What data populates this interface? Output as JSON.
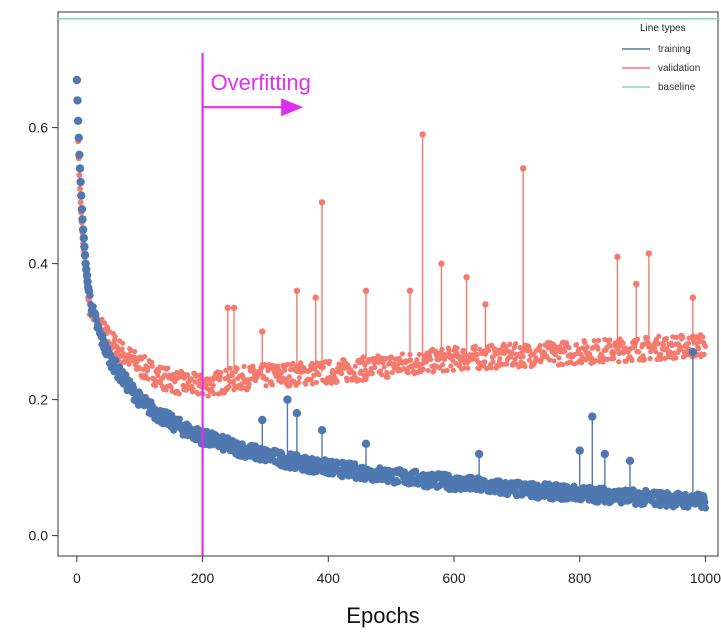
{
  "chart_data": {
    "type": "scatter",
    "title": "",
    "xlabel": "Epochs",
    "ylabel": "",
    "xlim": [
      -30,
      1020
    ],
    "ylim": [
      -0.03,
      0.77
    ],
    "x_ticks": [
      0,
      200,
      400,
      600,
      800,
      1000
    ],
    "y_ticks": [
      0.0,
      0.2,
      0.4,
      0.6
    ],
    "x_tick_labels": [
      "0",
      "200",
      "400",
      "600",
      "800",
      "1000"
    ],
    "y_tick_labels": [
      "0.0",
      "0.2",
      "0.4",
      "0.6"
    ],
    "grid": false,
    "legend": {
      "title": "Line types",
      "placement": "top-right",
      "entries": [
        "training",
        "validation",
        "baseline"
      ]
    },
    "colors": {
      "training": "#4f78b0",
      "validation": "#f47a6e",
      "baseline": "#7fd8c0",
      "overfitting": "#e12ff0"
    },
    "baseline": {
      "name": "baseline",
      "y": 0.76
    },
    "annotation": {
      "text": "Overfitting",
      "x": 200,
      "arrow_to_x": 360,
      "arrow_y": 0.63
    },
    "series": [
      {
        "name": "training",
        "x": [
          0,
          2,
          4,
          6,
          8,
          10,
          14,
          18,
          25,
          35,
          50,
          70,
          100,
          130,
          160,
          200,
          250,
          300,
          350,
          400,
          500,
          600,
          700,
          800,
          900,
          1000
        ],
        "y": [
          0.67,
          0.61,
          0.56,
          0.52,
          0.48,
          0.45,
          0.4,
          0.365,
          0.33,
          0.3,
          0.265,
          0.235,
          0.2,
          0.178,
          0.162,
          0.145,
          0.13,
          0.118,
          0.108,
          0.1,
          0.088,
          0.078,
          0.068,
          0.062,
          0.056,
          0.05
        ]
      },
      {
        "name": "validation",
        "x": [
          0,
          2,
          4,
          6,
          8,
          10,
          14,
          18,
          25,
          35,
          50,
          70,
          100,
          130,
          160,
          200,
          250,
          300,
          350,
          400,
          500,
          600,
          700,
          800,
          900,
          1000
        ],
        "y": [
          0.64,
          0.58,
          0.53,
          0.49,
          0.46,
          0.43,
          0.39,
          0.35,
          0.325,
          0.31,
          0.29,
          0.27,
          0.25,
          0.235,
          0.225,
          0.22,
          0.23,
          0.235,
          0.238,
          0.24,
          0.25,
          0.26,
          0.265,
          0.27,
          0.275,
          0.28
        ]
      }
    ],
    "validation_spikes": {
      "x": [
        240,
        250,
        295,
        350,
        380,
        390,
        460,
        530,
        550,
        580,
        620,
        650,
        710,
        860,
        890,
        910,
        980
      ],
      "y": [
        0.335,
        0.335,
        0.3,
        0.36,
        0.35,
        0.49,
        0.36,
        0.36,
        0.59,
        0.4,
        0.38,
        0.34,
        0.54,
        0.41,
        0.37,
        0.415,
        0.35
      ]
    },
    "training_spikes": {
      "x": [
        295,
        335,
        350,
        390,
        460,
        640,
        800,
        820,
        840,
        880,
        980
      ],
      "y": [
        0.17,
        0.2,
        0.18,
        0.155,
        0.135,
        0.12,
        0.125,
        0.175,
        0.12,
        0.11,
        0.27
      ]
    }
  }
}
